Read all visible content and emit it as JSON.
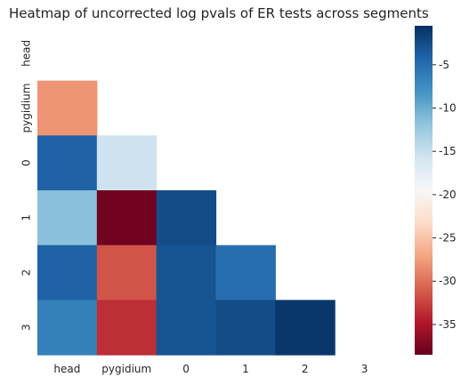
{
  "chart_data": {
    "type": "heatmap",
    "title": "Heatmap of uncorrected log pvals of ER tests across segments",
    "row_labels": [
      "head",
      "pygidium",
      "0",
      "1",
      "2",
      "3"
    ],
    "col_labels": [
      "head",
      "pygidium",
      "0",
      "1",
      "2",
      "3"
    ],
    "mask": "upper triangle including diagonal",
    "values": [
      [
        null,
        null,
        null,
        null,
        null,
        null
      ],
      [
        -28,
        null,
        null,
        null,
        null,
        null
      ],
      [
        -4,
        -15.5,
        null,
        null,
        null,
        null
      ],
      [
        -11.5,
        -38,
        -2.5,
        null,
        null,
        null
      ],
      [
        -4,
        -31.5,
        -3,
        -5,
        null,
        null
      ],
      [
        -6.5,
        -33.5,
        -3,
        -2.5,
        -1,
        null
      ]
    ],
    "colorbar": {
      "colormap": "RdBu",
      "vmin": -38.5,
      "vmax": -0.5,
      "ticks": [
        "-5",
        "-10",
        "-15",
        "-20",
        "-25",
        "-30",
        "-35"
      ],
      "tick_values": [
        -5,
        -10,
        -15,
        -20,
        -25,
        -30,
        -35
      ]
    }
  }
}
